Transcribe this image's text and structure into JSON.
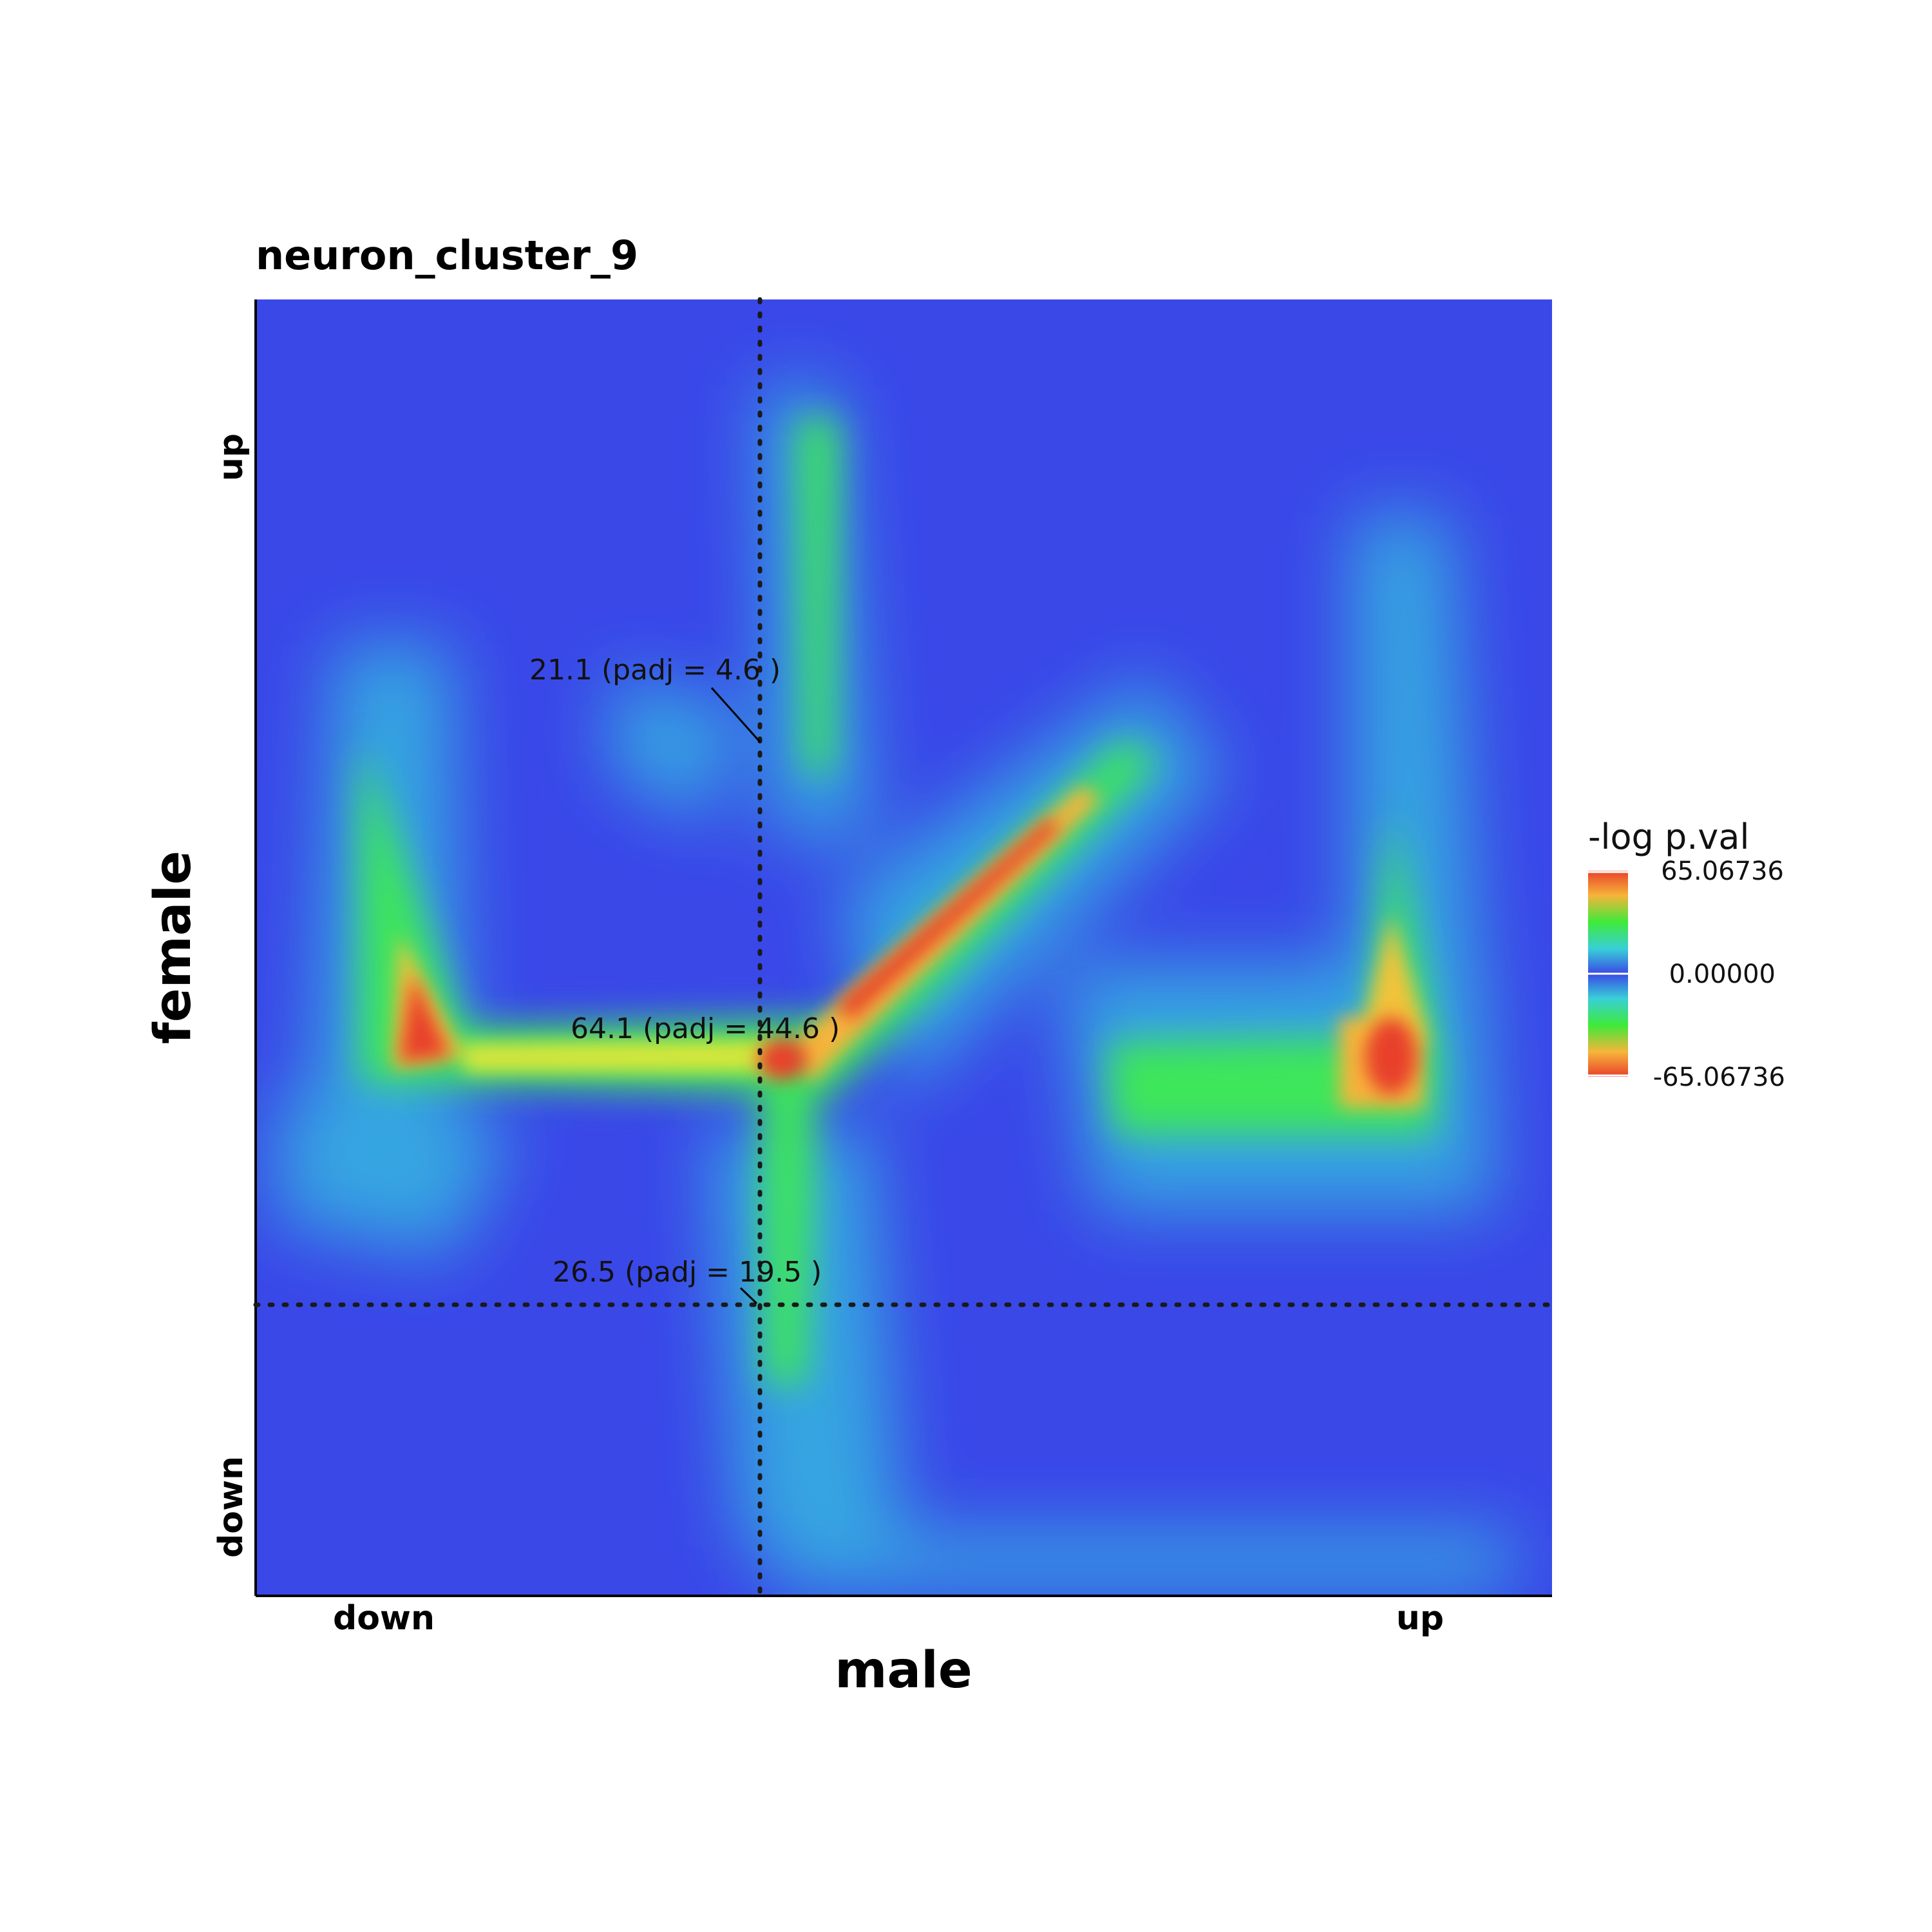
{
  "chart_data": {
    "type": "heatmap",
    "title": "neuron_cluster_9",
    "xlabel": "male",
    "ylabel": "female",
    "x_ticks": [
      "down",
      "up"
    ],
    "y_ticks": [
      "down",
      "up"
    ],
    "legend": {
      "title": "-log p.val",
      "max_label": "65.06736",
      "mid_label": "0.00000",
      "min_label": "-65.06736",
      "placement": "right",
      "colors": [
        "#e8402b",
        "#f7b43a",
        "#3eea3a",
        "#38cfd8",
        "#3949e6"
      ]
    },
    "background_color": "#3a48e8",
    "annotations": [
      {
        "text": "21.1 (padj = 4.6 )",
        "x": 0.39,
        "y": 0.66
      },
      {
        "text": "64.1 (padj = 44.6 )",
        "x": 0.4,
        "y": 0.415
      },
      {
        "text": "26.5 (padj = 19.5 )",
        "x": 0.39,
        "y": 0.225
      }
    ],
    "reference_lines": {
      "vertical_x": 0.39,
      "horizontal_y": 0.225,
      "style": "dotted"
    }
  }
}
